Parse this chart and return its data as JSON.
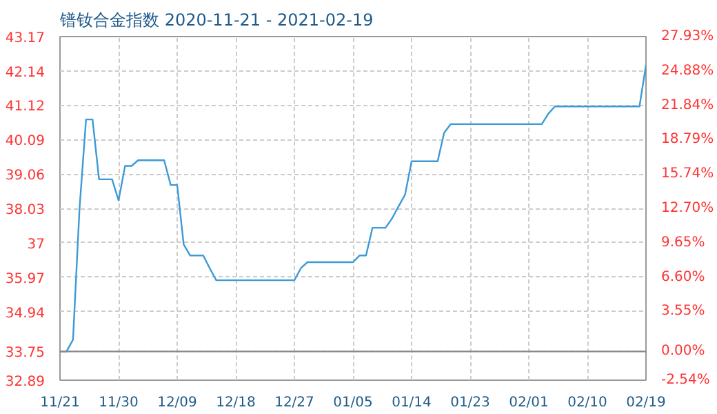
{
  "chart_data": {
    "type": "line",
    "title": "镨钕合金指数 2020-11-21 - 2021-02-19",
    "x": [
      "2020-11-21",
      "2020-11-22",
      "2020-11-23",
      "2020-11-24",
      "2020-11-25",
      "2020-11-26",
      "2020-11-27",
      "2020-11-29",
      "2020-11-30",
      "2020-12-01",
      "2020-12-02",
      "2020-12-03",
      "2020-12-07",
      "2020-12-08",
      "2020-12-09",
      "2020-12-10",
      "2020-12-11",
      "2020-12-13",
      "2020-12-14",
      "2020-12-15",
      "2020-12-27",
      "2020-12-28",
      "2020-12-29",
      "2021-01-05",
      "2021-01-06",
      "2021-01-07",
      "2021-01-08",
      "2021-01-10",
      "2021-01-11",
      "2021-01-12",
      "2021-01-13",
      "2021-01-14",
      "2021-01-18",
      "2021-01-19",
      "2021-01-20",
      "2021-02-03",
      "2021-02-04",
      "2021-02-05",
      "2021-02-18",
      "2021-02-19"
    ],
    "series": [
      {
        "color": "#3c9ad6",
        "values": [
          33.75,
          33.75,
          34.1,
          38.02,
          40.69,
          40.69,
          38.9,
          38.9,
          38.27,
          39.3,
          39.3,
          39.47,
          39.47,
          38.73,
          38.73,
          36.95,
          36.62,
          36.62,
          36.24,
          35.88,
          35.88,
          36.24,
          36.42,
          36.42,
          36.62,
          36.62,
          37.45,
          37.45,
          37.73,
          38.09,
          38.44,
          39.44,
          39.44,
          40.29,
          40.55,
          40.55,
          40.86,
          41.08,
          41.08,
          42.32
        ]
      }
    ],
    "xlim": [
      "2020-11-21",
      "2021-02-19"
    ],
    "xticks": [
      {
        "value": "2020-11-21",
        "label": "11/21"
      },
      {
        "value": "2020-11-30",
        "label": "11/30"
      },
      {
        "value": "2020-12-09",
        "label": "12/09"
      },
      {
        "value": "2020-12-18",
        "label": "12/18"
      },
      {
        "value": "2020-12-27",
        "label": "12/27"
      },
      {
        "value": "2021-01-05",
        "label": "01/05"
      },
      {
        "value": "2021-01-14",
        "label": "01/14"
      },
      {
        "value": "2021-01-23",
        "label": "01/23"
      },
      {
        "value": "2021-02-01",
        "label": "02/01"
      },
      {
        "value": "2021-02-10",
        "label": "02/10"
      },
      {
        "value": "2021-02-19",
        "label": "02/19"
      }
    ],
    "ylim": [
      32.89,
      43.17
    ],
    "yticks": [
      32.89,
      33.75,
      34.94,
      35.97,
      37,
      38.03,
      39.06,
      40.09,
      41.12,
      42.14,
      43.17
    ],
    "y2lim": [
      -2.54,
      27.93
    ],
    "y2ticks": [
      {
        "value": -2.54,
        "label": "-2.54%"
      },
      {
        "value": 0,
        "label": "0.00%"
      },
      {
        "value": 3.55,
        "label": "3.55%"
      },
      {
        "value": 6.6,
        "label": "6.60%"
      },
      {
        "value": 9.65,
        "label": "9.65%"
      },
      {
        "value": 12.7,
        "label": "12.70%"
      },
      {
        "value": 15.74,
        "label": "15.74%"
      },
      {
        "value": 18.79,
        "label": "18.79%"
      },
      {
        "value": 21.84,
        "label": "21.84%"
      },
      {
        "value": 24.88,
        "label": "24.88%"
      },
      {
        "value": 27.93,
        "label": "27.93%"
      }
    ],
    "ref_lines": [
      {
        "axis": "y",
        "value": 33.75,
        "color": "#888888"
      }
    ],
    "grid": true,
    "marker": "none",
    "line_style": "solid"
  }
}
